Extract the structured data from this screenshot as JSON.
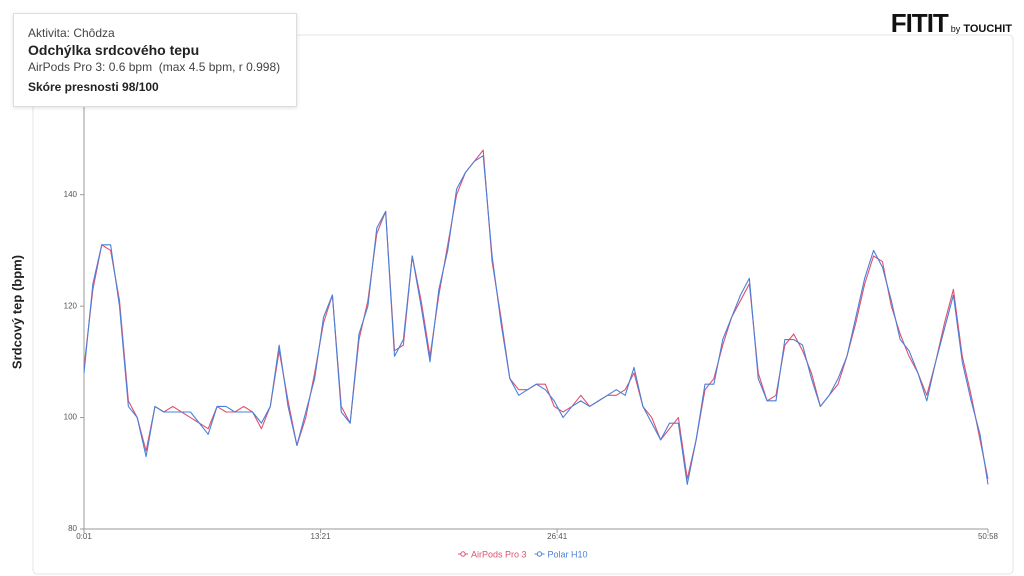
{
  "chart_data": {
    "type": "line",
    "y_label": "Srdcový tep (bpm)",
    "x": [
      1,
      31,
      61,
      91,
      121,
      151,
      181,
      211,
      241,
      271,
      301,
      331,
      361,
      391,
      421,
      451,
      481,
      511,
      541,
      571,
      601,
      631,
      661,
      691,
      721,
      751,
      781,
      811,
      841,
      871,
      901,
      931,
      961,
      991,
      1021,
      1051,
      1081,
      1111,
      1141,
      1171,
      1201,
      1231,
      1261,
      1291,
      1321,
      1351,
      1381,
      1411,
      1441,
      1471,
      1501,
      1531,
      1561,
      1591,
      1621,
      1651,
      1681,
      1711,
      1741,
      1771,
      1801,
      1831,
      1861,
      1891,
      1921,
      1951,
      1981,
      2011,
      2041,
      2071,
      2101,
      2131,
      2161,
      2191,
      2221,
      2251,
      2281,
      2311,
      2341,
      2371,
      2401,
      2431,
      2461,
      2491,
      2521,
      2551,
      2581,
      2611,
      2641,
      2671,
      2701,
      2731,
      2761,
      2791,
      2821,
      2851,
      2881,
      2911,
      2941,
      2971,
      3001,
      3031,
      3058
    ],
    "series": [
      {
        "name": "AirPods Pro 3",
        "color": "#e0506e",
        "values": [
          109,
          123,
          131,
          130,
          121,
          103,
          100,
          94,
          102,
          101,
          102,
          101,
          100,
          99,
          98,
          102,
          101,
          101,
          102,
          101,
          98,
          102,
          112,
          103,
          95,
          100,
          108,
          117,
          122,
          102,
          99,
          114,
          121,
          133,
          137,
          112,
          113,
          129,
          121,
          111,
          122,
          131,
          140,
          144,
          146,
          148,
          128,
          118,
          107,
          105,
          105,
          106,
          106,
          102,
          101,
          102,
          104,
          102,
          103,
          104,
          104,
          105,
          108,
          102,
          100,
          96,
          98,
          100,
          89,
          96,
          105,
          107,
          113,
          118,
          121,
          124,
          108,
          103,
          104,
          113,
          115,
          112,
          108,
          102,
          104,
          106,
          111,
          117,
          124,
          129,
          128,
          120,
          115,
          111,
          108,
          104,
          110,
          117,
          123,
          111,
          104,
          96,
          89
        ]
      },
      {
        "name": "Polar H10",
        "color": "#4a80d8",
        "values": [
          108,
          124,
          131,
          131,
          120,
          102,
          100,
          93,
          102,
          101,
          101,
          101,
          101,
          99,
          97,
          102,
          102,
          101,
          101,
          101,
          99,
          102,
          113,
          102,
          95,
          101,
          107,
          118,
          122,
          101,
          99,
          115,
          120,
          134,
          137,
          111,
          114,
          129,
          120,
          110,
          123,
          130,
          141,
          144,
          146,
          147,
          129,
          117,
          107,
          104,
          105,
          106,
          105,
          103,
          100,
          102,
          103,
          102,
          103,
          104,
          105,
          104,
          109,
          102,
          99,
          96,
          99,
          99,
          88,
          96,
          106,
          106,
          114,
          118,
          122,
          125,
          107,
          103,
          103,
          114,
          114,
          113,
          107,
          102,
          104,
          107,
          111,
          118,
          125,
          130,
          127,
          121,
          114,
          112,
          108,
          103,
          110,
          116,
          122,
          110,
          103,
          97,
          88
        ]
      }
    ],
    "xlim": [
      1,
      3058
    ],
    "xticks": [
      {
        "value": 1,
        "label": "0:01"
      },
      {
        "value": 801,
        "label": "13:21"
      },
      {
        "value": 1601,
        "label": "26:41"
      },
      {
        "value": 3058,
        "label": "50:58"
      }
    ],
    "ylim": [
      80,
      157
    ],
    "yticks": [
      80,
      100,
      120,
      140
    ],
    "legend": "bottom"
  },
  "panel": {
    "activity": "Aktivita: Chôdza",
    "heading": "Odchýlka srdcového tepu",
    "detail": "AirPods Pro 3: 0.6 bpm  (max 4.5 bpm, r 0.998)",
    "score": "Skóre presnosti 98/100"
  },
  "brand": {
    "logo": "FITIT",
    "by": "by",
    "name": "TOUCHIT"
  }
}
